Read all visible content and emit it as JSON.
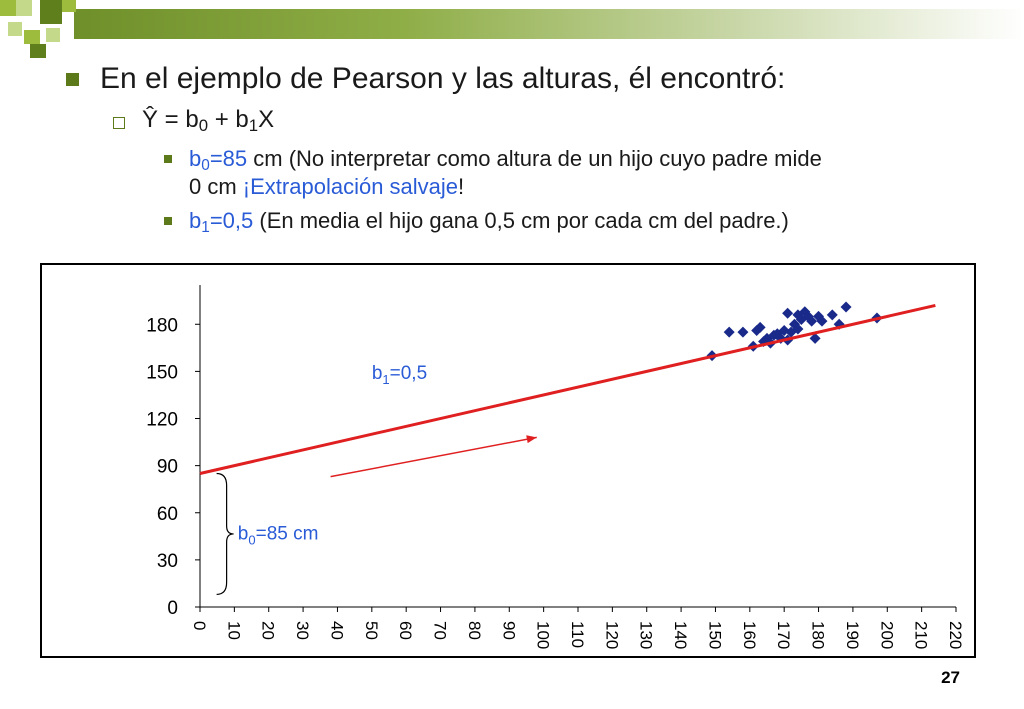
{
  "slide": {
    "heading": "En el ejemplo de Pearson y las alturas, él encontró:",
    "equation": {
      "lhs": "Ŷ = b",
      "sub0": "0",
      "plus": " + b",
      "sub1": "1",
      "rhs": "X"
    },
    "b0_line": {
      "var": "b",
      "sub": "0",
      "value": "=85",
      "text1": " cm (No interpretar como altura de un hijo cuyo padre mide",
      "text2_a": "0 cm ",
      "text2_b": "¡Extrapolación salvaje",
      "text2_c": "!"
    },
    "b1_line": {
      "var": "b",
      "sub": "1",
      "value": "=0,5",
      "text": " (En media el hijo gana 0,5 cm por cada cm del padre.)"
    },
    "page_number": "27"
  },
  "colors": {
    "accent_green": "#5c7a1a",
    "highlight_blue": "#2a5bd7",
    "regression_red": "#e02020",
    "points_navy": "#1a2a8a"
  },
  "chart_data": {
    "type": "scatter",
    "x_ticks": [
      "0",
      "10",
      "20",
      "30",
      "40",
      "50",
      "60",
      "70",
      "80",
      "90",
      "100",
      "110",
      "120",
      "130",
      "140",
      "150",
      "160",
      "170",
      "180",
      "190",
      "200",
      "210",
      "220"
    ],
    "y_ticks": [
      "0",
      "30",
      "60",
      "90",
      "120",
      "150",
      "180"
    ],
    "xlim": [
      0,
      220
    ],
    "ylim": [
      0,
      205
    ],
    "points": [
      [
        149,
        160
      ],
      [
        154,
        175
      ],
      [
        158,
        175
      ],
      [
        161,
        166
      ],
      [
        162,
        176
      ],
      [
        163,
        178
      ],
      [
        164,
        169
      ],
      [
        165,
        171
      ],
      [
        166,
        168
      ],
      [
        167,
        173
      ],
      [
        168,
        174
      ],
      [
        169,
        171
      ],
      [
        170,
        176
      ],
      [
        171,
        170
      ],
      [
        171,
        187
      ],
      [
        172,
        175
      ],
      [
        173,
        180
      ],
      [
        174,
        177
      ],
      [
        174,
        186
      ],
      [
        175,
        183
      ],
      [
        176,
        188
      ],
      [
        177,
        185
      ],
      [
        178,
        182
      ],
      [
        179,
        171
      ],
      [
        180,
        185
      ],
      [
        181,
        182
      ],
      [
        184,
        186
      ],
      [
        186,
        180
      ],
      [
        188,
        191
      ],
      [
        197,
        184
      ]
    ],
    "regression": {
      "intercept": 85,
      "slope": 0.5,
      "x_start": 0,
      "x_end": 214
    },
    "annotations": {
      "b1_label": {
        "var": "b",
        "sub": "1",
        "value": "=0,5"
      },
      "b0_label": {
        "var": "b",
        "sub": "0",
        "value": "=85 cm"
      }
    }
  }
}
